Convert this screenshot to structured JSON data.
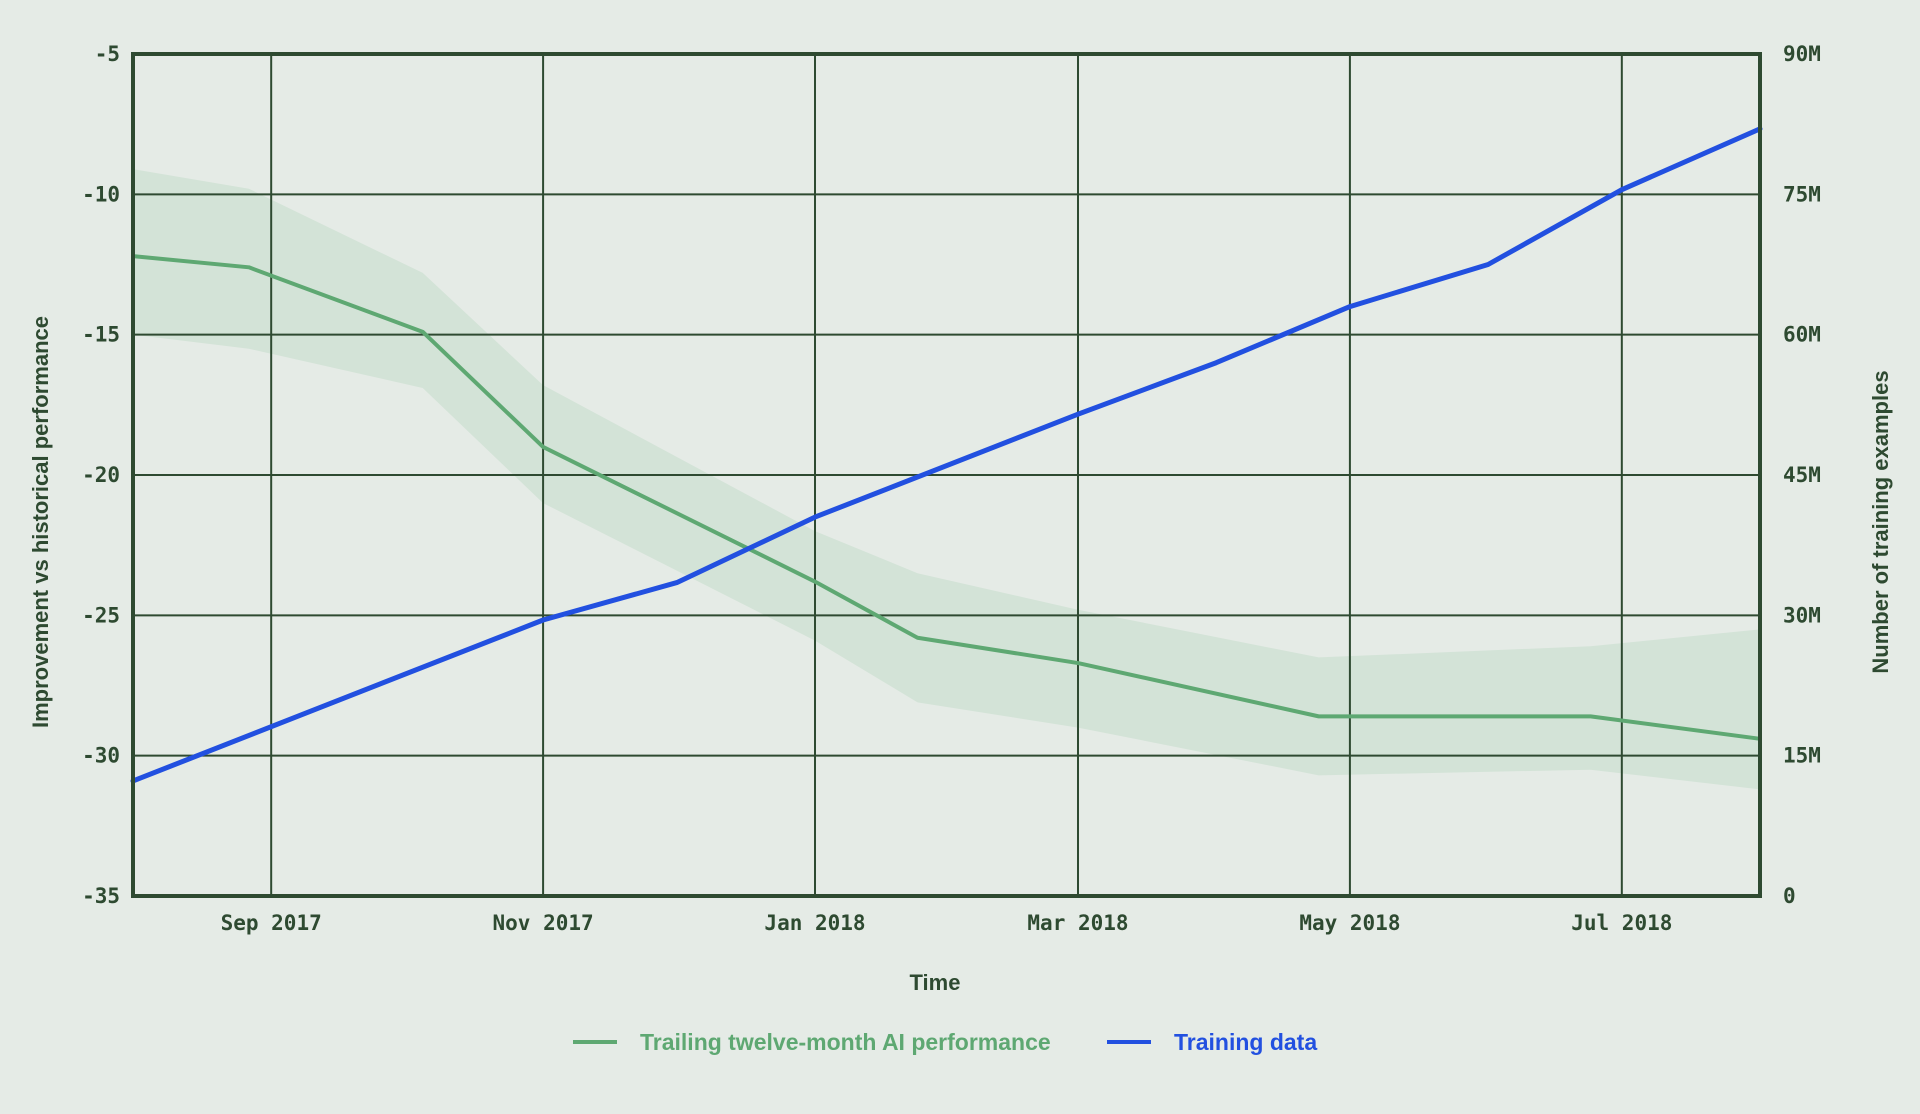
{
  "colors": {
    "background": "#e5ebe6",
    "grid": "#2e4a31",
    "performance": "#5ea872",
    "performance_band": "#d3e3d7",
    "training": "#2250e0"
  },
  "chart_data": {
    "type": "line",
    "title": "",
    "xlabel": "Time",
    "ylabel_left": "Improvement vs historical performance",
    "ylabel_right": "Number of training examples",
    "xlim": [
      "2017-08-01",
      "2018-08-01"
    ],
    "ylim_left": [
      -35,
      -5
    ],
    "ylim_right": [
      0,
      90000000
    ],
    "grid": true,
    "legend_position": "bottom-center",
    "x_ticks": [
      {
        "date": "2017-09-01",
        "label": "Sep 2017"
      },
      {
        "date": "2017-11-01",
        "label": "Nov 2017"
      },
      {
        "date": "2018-01-01",
        "label": "Jan 2018"
      },
      {
        "date": "2018-03-01",
        "label": "Mar 2018"
      },
      {
        "date": "2018-05-01",
        "label": "May 2018"
      },
      {
        "date": "2018-07-01",
        "label": "Jul 2018"
      }
    ],
    "y_left_ticks": [
      {
        "value": -5,
        "label": "-5"
      },
      {
        "value": -10,
        "label": "-10"
      },
      {
        "value": -15,
        "label": "-15"
      },
      {
        "value": -20,
        "label": "-20"
      },
      {
        "value": -25,
        "label": "-25"
      },
      {
        "value": -30,
        "label": "-30"
      },
      {
        "value": -35,
        "label": "-35"
      }
    ],
    "y_right_ticks": [
      {
        "value": 90000000,
        "label": "90M"
      },
      {
        "value": 75000000,
        "label": "75M"
      },
      {
        "value": 60000000,
        "label": "60M"
      },
      {
        "value": 45000000,
        "label": "45M"
      },
      {
        "value": 30000000,
        "label": "30M"
      },
      {
        "value": 15000000,
        "label": "15M"
      },
      {
        "value": 0,
        "label": "0"
      }
    ],
    "series": [
      {
        "name": "Trailing twelve-month AI performance",
        "axis": "left",
        "color": "#5ea872",
        "points": [
          {
            "x": "2017-08-01",
            "y": -12.2
          },
          {
            "x": "2017-08-27",
            "y": -12.6
          },
          {
            "x": "2017-10-05",
            "y": -14.9
          },
          {
            "x": "2017-11-01",
            "y": -19.0
          },
          {
            "x": "2018-01-01",
            "y": -23.8
          },
          {
            "x": "2018-01-24",
            "y": -25.8
          },
          {
            "x": "2018-03-01",
            "y": -26.7
          },
          {
            "x": "2018-04-24",
            "y": -28.6
          },
          {
            "x": "2018-06-24",
            "y": -28.6
          },
          {
            "x": "2018-08-01",
            "y": -29.4
          }
        ],
        "band_upper": [
          {
            "x": "2017-08-01",
            "y": -9.1
          },
          {
            "x": "2017-08-27",
            "y": -9.8
          },
          {
            "x": "2017-10-05",
            "y": -12.8
          },
          {
            "x": "2017-11-01",
            "y": -16.8
          },
          {
            "x": "2018-01-01",
            "y": -22.0
          },
          {
            "x": "2018-01-24",
            "y": -23.5
          },
          {
            "x": "2018-03-01",
            "y": -24.8
          },
          {
            "x": "2018-04-24",
            "y": -26.5
          },
          {
            "x": "2018-06-24",
            "y": -26.1
          },
          {
            "x": "2018-08-01",
            "y": -25.5
          }
        ],
        "band_lower": [
          {
            "x": "2017-08-01",
            "y": -15.0
          },
          {
            "x": "2017-08-27",
            "y": -15.5
          },
          {
            "x": "2017-10-05",
            "y": -16.9
          },
          {
            "x": "2017-11-01",
            "y": -21.0
          },
          {
            "x": "2018-01-01",
            "y": -25.9
          },
          {
            "x": "2018-01-24",
            "y": -28.1
          },
          {
            "x": "2018-03-01",
            "y": -29.0
          },
          {
            "x": "2018-04-24",
            "y": -30.7
          },
          {
            "x": "2018-06-24",
            "y": -30.5
          },
          {
            "x": "2018-08-01",
            "y": -31.2
          }
        ]
      },
      {
        "name": "Training data",
        "axis": "right",
        "color": "#2250e0",
        "points": [
          {
            "x": "2017-08-01",
            "y": 12300000
          },
          {
            "x": "2017-11-01",
            "y": 29500000
          },
          {
            "x": "2017-12-01",
            "y": 33500000
          },
          {
            "x": "2018-01-01",
            "y": 40500000
          },
          {
            "x": "2018-03-01",
            "y": 51500000
          },
          {
            "x": "2018-04-01",
            "y": 57000000
          },
          {
            "x": "2018-05-01",
            "y": 63000000
          },
          {
            "x": "2018-06-01",
            "y": 67500000
          },
          {
            "x": "2018-07-01",
            "y": 75500000
          },
          {
            "x": "2018-08-01",
            "y": 82000000
          }
        ]
      }
    ]
  }
}
